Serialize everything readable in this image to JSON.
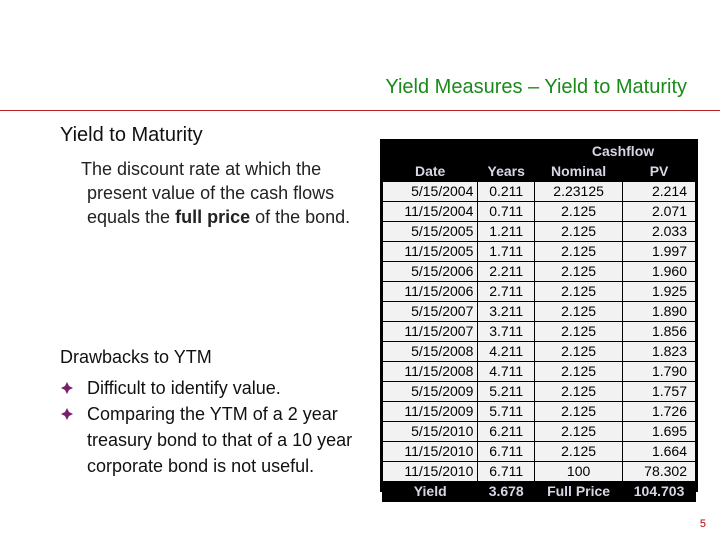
{
  "slide": {
    "title": "Yield Measures – Yield to Maturity",
    "heading": "Yield to Maturity",
    "definition": {
      "line1": "The discount rate at which the",
      "line2": "present value of the cash flows",
      "line3_pre": "equals the ",
      "line3_bold": "full price",
      "line3_post": " of the bond."
    },
    "drawbacks": {
      "title": "Drawbacks to YTM",
      "bullets": [
        {
          "lines": [
            "Difficult to identify value."
          ]
        },
        {
          "lines": [
            "Comparing the YTM of a 2 year",
            "treasury bond to that of a 10 year",
            "corporate bond is not useful."
          ]
        }
      ]
    },
    "page_number": "5",
    "colors": {
      "title": "#1a8a1a",
      "rule": "#b52323",
      "bullet": "#7a1f6b",
      "page_number": "#c00000"
    }
  },
  "table": {
    "group_header": "Cashflow",
    "headers": [
      "Date",
      "Years",
      "Nominal",
      "PV"
    ],
    "rows": [
      [
        "5/15/2004",
        "0.211",
        "2.23125",
        "2.214"
      ],
      [
        "11/15/2004",
        "0.711",
        "2.125",
        "2.071"
      ],
      [
        "5/15/2005",
        "1.211",
        "2.125",
        "2.033"
      ],
      [
        "11/15/2005",
        "1.711",
        "2.125",
        "1.997"
      ],
      [
        "5/15/2006",
        "2.211",
        "2.125",
        "1.960"
      ],
      [
        "11/15/2006",
        "2.711",
        "2.125",
        "1.925"
      ],
      [
        "5/15/2007",
        "3.211",
        "2.125",
        "1.890"
      ],
      [
        "11/15/2007",
        "3.711",
        "2.125",
        "1.856"
      ],
      [
        "5/15/2008",
        "4.211",
        "2.125",
        "1.823"
      ],
      [
        "11/15/2008",
        "4.711",
        "2.125",
        "1.790"
      ],
      [
        "5/15/2009",
        "5.211",
        "2.125",
        "1.757"
      ],
      [
        "11/15/2009",
        "5.711",
        "2.125",
        "1.726"
      ],
      [
        "5/15/2010",
        "6.211",
        "2.125",
        "1.695"
      ],
      [
        "11/15/2010",
        "6.711",
        "2.125",
        "1.664"
      ],
      [
        "11/15/2010",
        "6.711",
        "100",
        "78.302"
      ]
    ],
    "footer": [
      "Yield",
      "3.678",
      "Full Price",
      "104.703"
    ]
  }
}
